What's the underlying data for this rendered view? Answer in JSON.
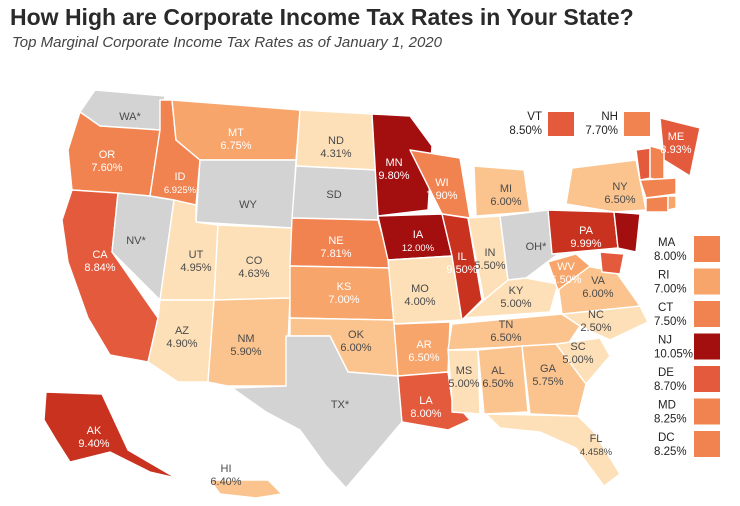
{
  "title": "How High are Corporate Income Tax Rates in Your State?",
  "subtitle": "Top Marginal Corporate Income Tax Rates as of January 1, 2020",
  "colors": {
    "none": "#d3d3d3",
    "tier1": "#fde0b8",
    "tier2": "#fbc48e",
    "tier3": "#f7a56a",
    "tier4": "#f18350",
    "tier5": "#e45a3c",
    "tier6": "#c9321f",
    "tier7": "#a30e0e",
    "border": "#ffffff"
  },
  "states": [
    {
      "code": "WA*",
      "rate": "",
      "tier": "none"
    },
    {
      "code": "OR",
      "rate": "7.60%",
      "tier": "tier4"
    },
    {
      "code": "CA",
      "rate": "8.84%",
      "tier": "tier5"
    },
    {
      "code": "NV*",
      "rate": "",
      "tier": "none"
    },
    {
      "code": "ID",
      "rate": "6.925%",
      "tier": "tier4"
    },
    {
      "code": "MT",
      "rate": "6.75%",
      "tier": "tier3"
    },
    {
      "code": "WY",
      "rate": "",
      "tier": "none"
    },
    {
      "code": "UT",
      "rate": "4.95%",
      "tier": "tier1"
    },
    {
      "code": "AZ",
      "rate": "4.90%",
      "tier": "tier1"
    },
    {
      "code": "CO",
      "rate": "4.63%",
      "tier": "tier1"
    },
    {
      "code": "NM",
      "rate": "5.90%",
      "tier": "tier2"
    },
    {
      "code": "ND",
      "rate": "4.31%",
      "tier": "tier1"
    },
    {
      "code": "SD",
      "rate": "",
      "tier": "none"
    },
    {
      "code": "NE",
      "rate": "7.81%",
      "tier": "tier4"
    },
    {
      "code": "KS",
      "rate": "7.00%",
      "tier": "tier3"
    },
    {
      "code": "OK",
      "rate": "6.00%",
      "tier": "tier2"
    },
    {
      "code": "TX*",
      "rate": "",
      "tier": "none"
    },
    {
      "code": "MN",
      "rate": "9.80%",
      "tier": "tier7"
    },
    {
      "code": "IA",
      "rate": "12.00%",
      "tier": "tier7"
    },
    {
      "code": "MO",
      "rate": "4.00%",
      "tier": "tier1"
    },
    {
      "code": "AR",
      "rate": "6.50%",
      "tier": "tier3"
    },
    {
      "code": "LA",
      "rate": "8.00%",
      "tier": "tier5"
    },
    {
      "code": "WI",
      "rate": "7.90%",
      "tier": "tier4"
    },
    {
      "code": "IL",
      "rate": "9.50%",
      "tier": "tier6"
    },
    {
      "code": "MI",
      "rate": "6.00%",
      "tier": "tier2"
    },
    {
      "code": "IN",
      "rate": "5.50%",
      "tier": "tier1"
    },
    {
      "code": "OH*",
      "rate": "",
      "tier": "none"
    },
    {
      "code": "KY",
      "rate": "5.00%",
      "tier": "tier1"
    },
    {
      "code": "TN",
      "rate": "6.50%",
      "tier": "tier2"
    },
    {
      "code": "MS",
      "rate": "5.00%",
      "tier": "tier1"
    },
    {
      "code": "AL",
      "rate": "6.50%",
      "tier": "tier2"
    },
    {
      "code": "GA",
      "rate": "5.75%",
      "tier": "tier2"
    },
    {
      "code": "FL",
      "rate": "4.458%",
      "tier": "tier1"
    },
    {
      "code": "SC",
      "rate": "5.00%",
      "tier": "tier1"
    },
    {
      "code": "NC",
      "rate": "2.50%",
      "tier": "tier1"
    },
    {
      "code": "VA",
      "rate": "6.00%",
      "tier": "tier2"
    },
    {
      "code": "WV",
      "rate": "6.50%",
      "tier": "tier3"
    },
    {
      "code": "PA",
      "rate": "9.99%",
      "tier": "tier6"
    },
    {
      "code": "NY",
      "rate": "6.50%",
      "tier": "tier2"
    },
    {
      "code": "ME",
      "rate": "8.93%",
      "tier": "tier5"
    },
    {
      "code": "AK",
      "rate": "9.40%",
      "tier": "tier6"
    },
    {
      "code": "HI",
      "rate": "6.40%",
      "tier": "tier2"
    }
  ],
  "callouts_top": [
    {
      "code": "VT",
      "rate": "8.50%",
      "tier": "tier5"
    },
    {
      "code": "NH",
      "rate": "7.70%",
      "tier": "tier4"
    }
  ],
  "callouts_right": [
    {
      "code": "MA",
      "rate": "8.00%",
      "tier": "tier4"
    },
    {
      "code": "RI",
      "rate": "7.00%",
      "tier": "tier3"
    },
    {
      "code": "CT",
      "rate": "7.50%",
      "tier": "tier4"
    },
    {
      "code": "NJ",
      "rate": "10.05%",
      "tier": "tier7"
    },
    {
      "code": "DE",
      "rate": "8.70%",
      "tier": "tier5"
    },
    {
      "code": "MD",
      "rate": "8.25%",
      "tier": "tier4"
    },
    {
      "code": "DC",
      "rate": "8.25%",
      "tier": "tier4"
    }
  ]
}
